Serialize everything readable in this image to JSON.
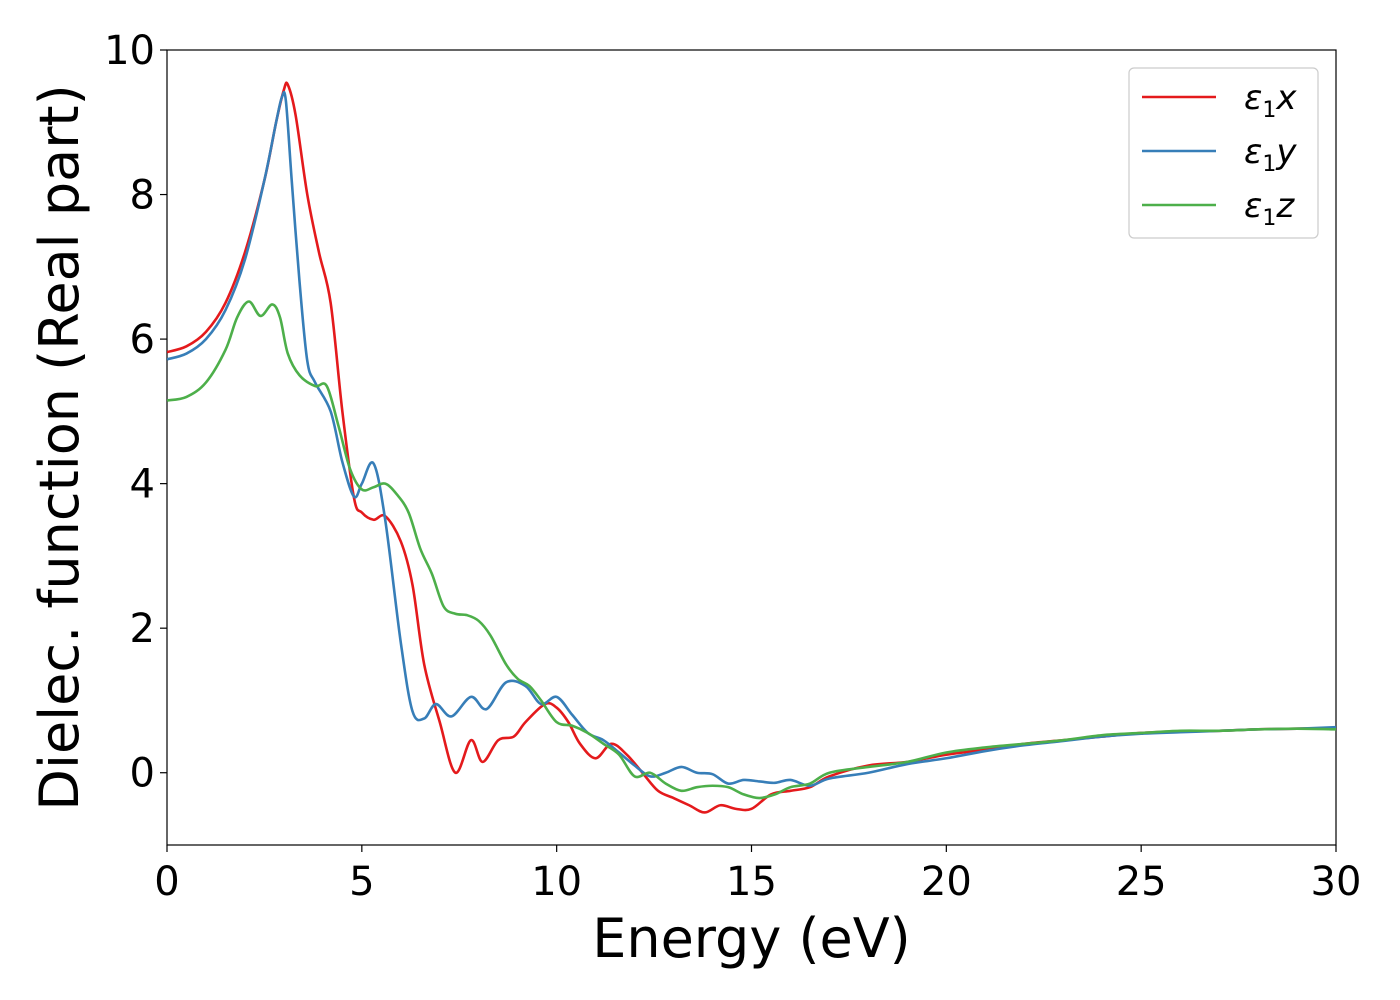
{
  "chart_data": {
    "type": "line",
    "title": "",
    "xlabel": "Energy (eV)",
    "ylabel": "Dielec. function (Real part)",
    "xlim": [
      0,
      30
    ],
    "ylim": [
      -1,
      10
    ],
    "xticks": [
      "0",
      "5",
      "10",
      "15",
      "20",
      "25",
      "30"
    ],
    "yticks": [
      "0",
      "2",
      "4",
      "6",
      "8",
      "10"
    ],
    "grid": false,
    "legend_position": "top-right",
    "series": [
      {
        "name": "ε1x",
        "legend_base": "ε",
        "legend_sub": "1",
        "legend_suffix": "x",
        "color": "#e41a1c",
        "x": [
          0,
          0.5,
          1,
          1.5,
          2,
          2.5,
          2.8,
          3.0,
          3.1,
          3.3,
          3.6,
          3.9,
          4.2,
          4.5,
          4.8,
          5.0,
          5.3,
          5.6,
          6.0,
          6.3,
          6.6,
          7.0,
          7.4,
          7.8,
          8.1,
          8.5,
          8.9,
          9.2,
          9.7,
          10.0,
          10.3,
          10.6,
          11.0,
          11.4,
          11.8,
          12.2,
          12.6,
          13.0,
          13.4,
          13.8,
          14.2,
          14.6,
          15.0,
          15.5,
          16.0,
          16.5,
          17.0,
          18.0,
          19.0,
          20.0,
          21.0,
          22.0,
          23.0,
          24.0,
          25.0,
          26.0,
          27.0,
          28.0,
          29.0,
          30.0
        ],
        "y": [
          5.82,
          5.9,
          6.1,
          6.5,
          7.2,
          8.2,
          9.0,
          9.45,
          9.52,
          9.1,
          8.0,
          7.2,
          6.5,
          5.0,
          3.8,
          3.6,
          3.5,
          3.55,
          3.2,
          2.6,
          1.5,
          0.7,
          0.0,
          0.45,
          0.15,
          0.45,
          0.5,
          0.7,
          0.95,
          0.9,
          0.7,
          0.4,
          0.2,
          0.4,
          0.25,
          0.0,
          -0.25,
          -0.35,
          -0.45,
          -0.55,
          -0.45,
          -0.5,
          -0.5,
          -0.3,
          -0.25,
          -0.2,
          -0.05,
          0.1,
          0.15,
          0.25,
          0.32,
          0.4,
          0.45,
          0.5,
          0.55,
          0.57,
          0.58,
          0.6,
          0.61,
          0.62
        ]
      },
      {
        "name": "ε1y",
        "legend_base": "ε",
        "legend_sub": "1",
        "legend_suffix": "y",
        "color": "#377eb8",
        "x": [
          0,
          0.5,
          1,
          1.5,
          2,
          2.5,
          2.8,
          2.95,
          3.05,
          3.2,
          3.4,
          3.6,
          3.8,
          4.2,
          4.5,
          4.8,
          5.0,
          5.3,
          5.6,
          6.0,
          6.3,
          6.6,
          6.9,
          7.3,
          7.8,
          8.2,
          8.7,
          9.2,
          9.6,
          10.0,
          10.4,
          10.8,
          11.2,
          11.6,
          12.0,
          12.4,
          12.8,
          13.2,
          13.6,
          14.0,
          14.4,
          14.8,
          15.2,
          15.6,
          16.0,
          16.5,
          17.0,
          18.0,
          19.0,
          20.0,
          21.0,
          22.0,
          23.0,
          24.0,
          25.0,
          26.0,
          27.0,
          28.0,
          29.0,
          30.0
        ],
        "y": [
          5.72,
          5.8,
          6.0,
          6.4,
          7.1,
          8.2,
          9.0,
          9.35,
          9.3,
          8.2,
          6.8,
          5.7,
          5.4,
          5.0,
          4.3,
          3.82,
          4.0,
          4.28,
          3.5,
          1.8,
          0.85,
          0.75,
          0.95,
          0.78,
          1.05,
          0.88,
          1.25,
          1.2,
          0.95,
          1.05,
          0.8,
          0.55,
          0.45,
          0.28,
          0.1,
          -0.05,
          0.0,
          0.08,
          0.0,
          -0.02,
          -0.15,
          -0.1,
          -0.12,
          -0.14,
          -0.1,
          -0.18,
          -0.08,
          0.0,
          0.12,
          0.2,
          0.3,
          0.38,
          0.44,
          0.5,
          0.54,
          0.56,
          0.58,
          0.6,
          0.61,
          0.63
        ]
      },
      {
        "name": "ε1z",
        "legend_base": "ε",
        "legend_sub": "1",
        "legend_suffix": "z",
        "color": "#4daf4a",
        "x": [
          0,
          0.5,
          1,
          1.5,
          1.8,
          2.1,
          2.4,
          2.7,
          2.9,
          3.1,
          3.4,
          3.8,
          4.1,
          4.4,
          4.7,
          5.0,
          5.3,
          5.6,
          5.9,
          6.2,
          6.5,
          6.8,
          7.1,
          7.4,
          7.7,
          8.0,
          8.3,
          8.7,
          9.0,
          9.3,
          9.6,
          10.0,
          10.4,
          10.8,
          11.2,
          11.6,
          12.0,
          12.4,
          12.8,
          13.2,
          13.6,
          14.0,
          14.4,
          14.8,
          15.2,
          15.6,
          16.0,
          16.5,
          17.0,
          18.0,
          19.0,
          20.0,
          21.0,
          22.0,
          23.0,
          24.0,
          25.0,
          26.0,
          27.0,
          28.0,
          29.0,
          30.0
        ],
        "y": [
          5.15,
          5.2,
          5.4,
          5.85,
          6.3,
          6.52,
          6.32,
          6.48,
          6.3,
          5.8,
          5.5,
          5.35,
          5.35,
          4.8,
          4.2,
          3.92,
          3.95,
          4.0,
          3.85,
          3.6,
          3.1,
          2.75,
          2.3,
          2.2,
          2.18,
          2.1,
          1.9,
          1.5,
          1.3,
          1.2,
          1.0,
          0.7,
          0.65,
          0.55,
          0.4,
          0.25,
          -0.05,
          0.0,
          -0.15,
          -0.25,
          -0.2,
          -0.18,
          -0.2,
          -0.3,
          -0.35,
          -0.3,
          -0.2,
          -0.15,
          0.0,
          0.08,
          0.15,
          0.28,
          0.35,
          0.4,
          0.45,
          0.52,
          0.55,
          0.58,
          0.58,
          0.6,
          0.61,
          0.6
        ]
      }
    ]
  }
}
